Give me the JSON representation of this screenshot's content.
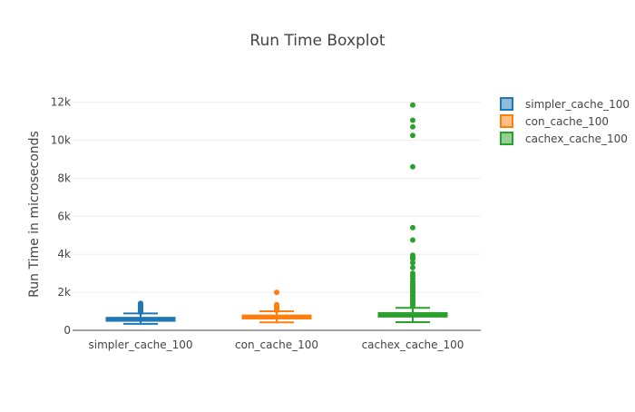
{
  "chart_data": {
    "type": "box",
    "title": "Run Time Boxplot",
    "xlabel": "",
    "ylabel": "Run Time in microseconds",
    "ylim": [
      0,
      12600
    ],
    "yticks": [
      0,
      2000,
      4000,
      6000,
      8000,
      10000,
      12000
    ],
    "ytick_labels": [
      "0",
      "2k",
      "4k",
      "6k",
      "8k",
      "10k",
      "12k"
    ],
    "grid": true,
    "legend_position": "top-right",
    "categories": [
      "simpler_cache_100",
      "con_cache_100",
      "cachex_cache_100"
    ],
    "series": [
      {
        "name": "simpler_cache_100",
        "color": "#1f77b4",
        "whisker_low": 340,
        "q1": 500,
        "median": 570,
        "q3": 660,
        "whisker_high": 890,
        "outliers": [
          950,
          1000,
          1050,
          1100,
          1150,
          1200,
          1250,
          1300,
          1350,
          1420
        ]
      },
      {
        "name": "con_cache_100",
        "color": "#ff7f0e",
        "whisker_low": 420,
        "q1": 620,
        "median": 700,
        "q3": 780,
        "whisker_high": 1000,
        "outliers": [
          1050,
          1100,
          1150,
          1200,
          1250,
          1300,
          1350,
          2000
        ]
      },
      {
        "name": "cachex_cache_100",
        "color": "#2ca02c",
        "whisker_low": 430,
        "q1": 720,
        "median": 810,
        "q3": 910,
        "whisker_high": 1180,
        "outliers": [
          1250,
          1350,
          1450,
          1550,
          1650,
          1750,
          1850,
          1950,
          2050,
          2150,
          2250,
          2350,
          2450,
          2550,
          2700,
          2850,
          3000,
          3300,
          3550,
          3750,
          3850,
          3950,
          4750,
          5400,
          8600,
          10250,
          10700,
          11050,
          11850
        ]
      }
    ]
  }
}
